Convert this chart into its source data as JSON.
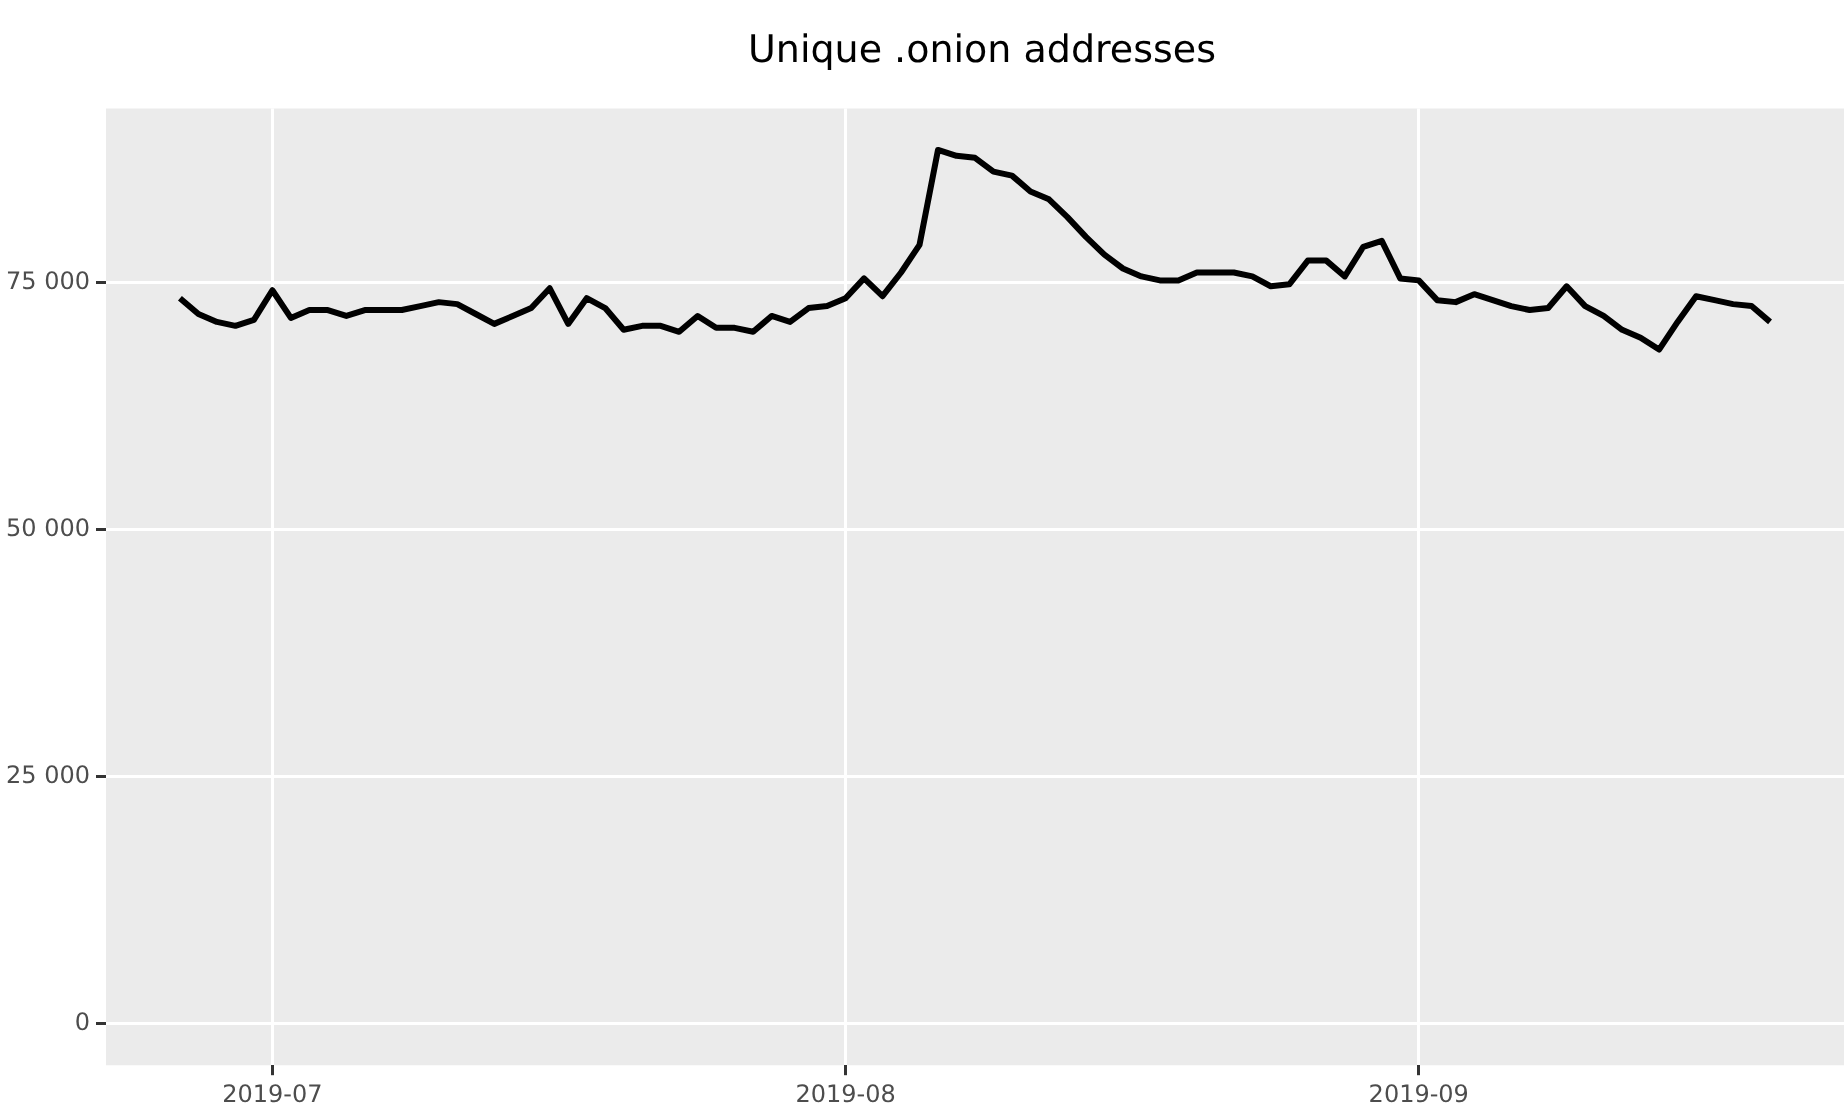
{
  "chart_data": {
    "type": "line",
    "title": "Unique .onion addresses",
    "x": [
      "2019-06-26",
      "2019-06-27",
      "2019-06-28",
      "2019-06-29",
      "2019-06-30",
      "2019-07-01",
      "2019-07-02",
      "2019-07-03",
      "2019-07-04",
      "2019-07-05",
      "2019-07-06",
      "2019-07-07",
      "2019-07-08",
      "2019-07-09",
      "2019-07-10",
      "2019-07-11",
      "2019-07-12",
      "2019-07-13",
      "2019-07-14",
      "2019-07-15",
      "2019-07-16",
      "2019-07-17",
      "2019-07-18",
      "2019-07-19",
      "2019-07-20",
      "2019-07-21",
      "2019-07-22",
      "2019-07-23",
      "2019-07-24",
      "2019-07-25",
      "2019-07-26",
      "2019-07-27",
      "2019-07-28",
      "2019-07-29",
      "2019-07-30",
      "2019-07-31",
      "2019-08-01",
      "2019-08-02",
      "2019-08-03",
      "2019-08-04",
      "2019-08-05",
      "2019-08-06",
      "2019-08-07",
      "2019-08-08",
      "2019-08-09",
      "2019-08-10",
      "2019-08-11",
      "2019-08-12",
      "2019-08-13",
      "2019-08-14",
      "2019-08-15",
      "2019-08-16",
      "2019-08-17",
      "2019-08-18",
      "2019-08-19",
      "2019-08-20",
      "2019-08-21",
      "2019-08-22",
      "2019-08-23",
      "2019-08-24",
      "2019-08-25",
      "2019-08-26",
      "2019-08-27",
      "2019-08-28",
      "2019-08-29",
      "2019-08-30",
      "2019-08-31",
      "2019-09-01",
      "2019-09-02",
      "2019-09-03",
      "2019-09-04",
      "2019-09-05",
      "2019-09-06",
      "2019-09-07",
      "2019-09-08",
      "2019-09-09",
      "2019-09-10",
      "2019-09-11",
      "2019-09-12",
      "2019-09-13",
      "2019-09-14",
      "2019-09-15",
      "2019-09-16",
      "2019-09-17",
      "2019-09-18",
      "2019-09-19",
      "2019-09-20"
    ],
    "series": [
      {
        "color": "#000000",
        "values": [
          73400,
          71800,
          71000,
          70600,
          71200,
          74200,
          71400,
          72200,
          72200,
          71600,
          72200,
          72200,
          72200,
          72600,
          73000,
          72800,
          71800,
          70800,
          71600,
          72400,
          74400,
          70800,
          73400,
          72400,
          70200,
          70600,
          70600,
          70000,
          71600,
          70400,
          70400,
          70000,
          71600,
          71000,
          72400,
          72600,
          73400,
          75400,
          73600,
          76000,
          78800,
          88400,
          87800,
          87600,
          86200,
          85800,
          84200,
          83400,
          81600,
          79600,
          77800,
          76400,
          75600,
          75200,
          75200,
          76000,
          76000,
          76000,
          75600,
          74600,
          74800,
          77200,
          77200,
          75600,
          78600,
          79200,
          75400,
          75200,
          73200,
          73000,
          73800,
          73200,
          72600,
          72200,
          72400,
          74600,
          72600,
          71600,
          70200,
          69400,
          68200,
          71000,
          73600,
          73200,
          72800,
          72600,
          71000
        ]
      }
    ],
    "xlim": [
      "2019-06-22",
      "2019-09-24"
    ],
    "xticks": [
      "2019-07",
      "2019-08",
      "2019-09"
    ],
    "ylim": [
      -4200,
      92600
    ],
    "yticks": [
      {
        "value": 0,
        "label": "0"
      },
      {
        "value": 25000,
        "label": "25 000"
      },
      {
        "value": 50000,
        "label": "50 000"
      },
      {
        "value": 75000,
        "label": "75 000"
      }
    ],
    "grid": true,
    "legend": false,
    "marker": "none",
    "line_style": "solid"
  }
}
